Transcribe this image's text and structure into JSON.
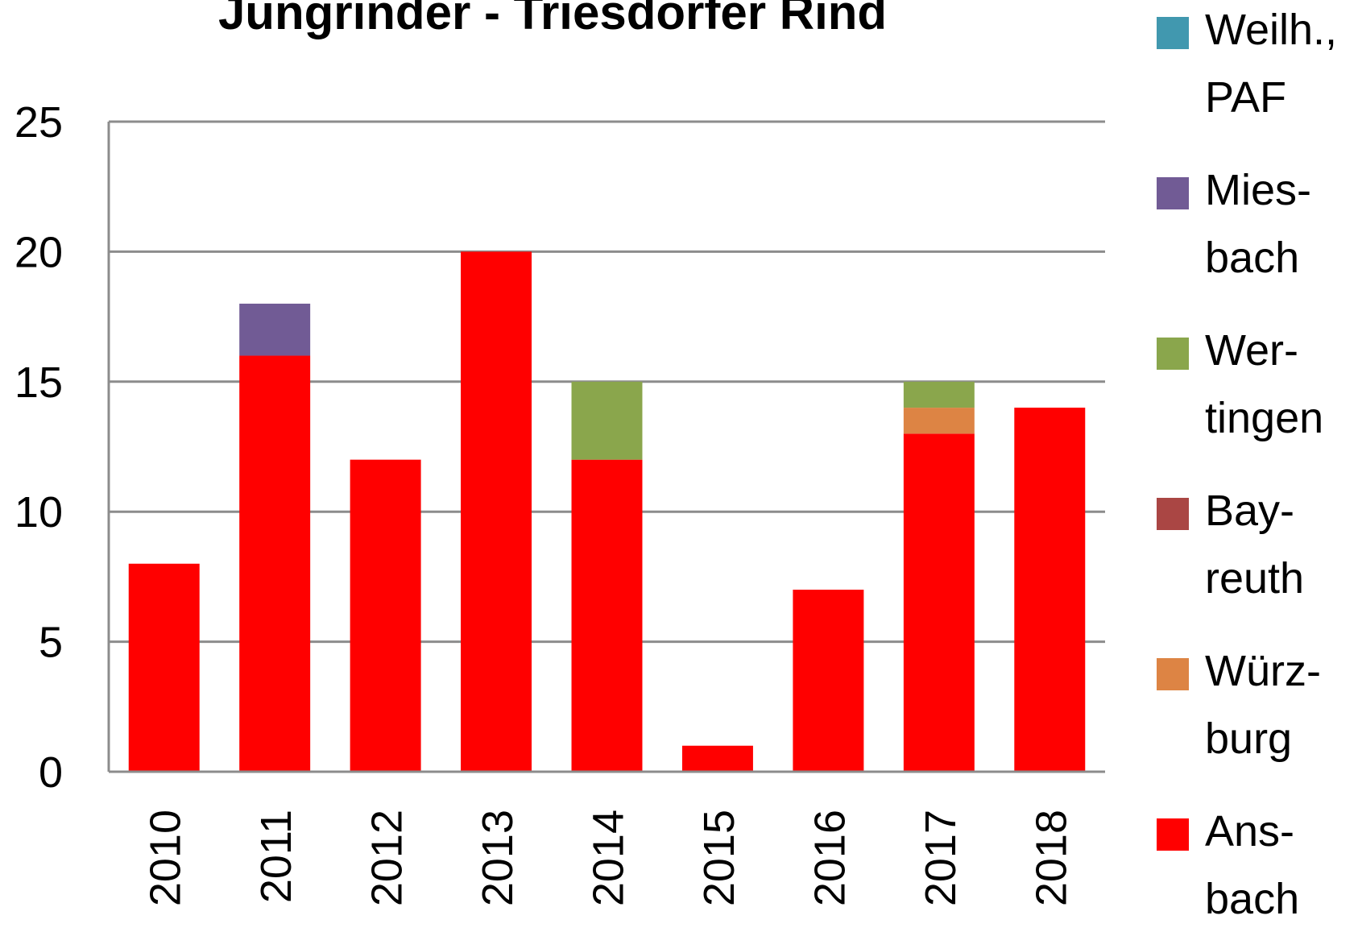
{
  "chart_data": {
    "type": "stacked_bar",
    "title": "Jungrinder - Triesdorfer Rind",
    "categories": [
      "2010",
      "2011",
      "2012",
      "2013",
      "2014",
      "2015",
      "2016",
      "2017",
      "2018"
    ],
    "series": [
      {
        "name": "Ans-\nbach",
        "color": "#ff0000",
        "values": [
          8,
          16,
          12,
          20,
          12,
          1,
          7,
          13,
          14
        ]
      },
      {
        "name": "Würz-\nburg",
        "color": "#dd8444",
        "values": [
          0,
          0,
          0,
          0,
          0,
          0,
          0,
          1,
          0
        ]
      },
      {
        "name": "Bay-\nreuth",
        "color": "#aa4644",
        "values": [
          0,
          0,
          0,
          0,
          0,
          0,
          0,
          0,
          0
        ]
      },
      {
        "name": "Wer-\ntingen",
        "color": "#8aa64c",
        "values": [
          0,
          0,
          0,
          0,
          3,
          0,
          0,
          1,
          0
        ]
      },
      {
        "name": "Mies-\nbach",
        "color": "#715b95",
        "values": [
          0,
          2,
          0,
          0,
          0,
          0,
          0,
          0,
          0
        ]
      },
      {
        "name": "Weilh.,\nPAF",
        "color": "#4198af",
        "values": [
          0,
          0,
          0,
          0,
          0,
          0,
          0,
          0,
          0
        ]
      }
    ],
    "ylim": [
      0,
      25
    ],
    "yticks": [
      0,
      5,
      10,
      15,
      20,
      25
    ],
    "grid": true,
    "legend": "right"
  }
}
